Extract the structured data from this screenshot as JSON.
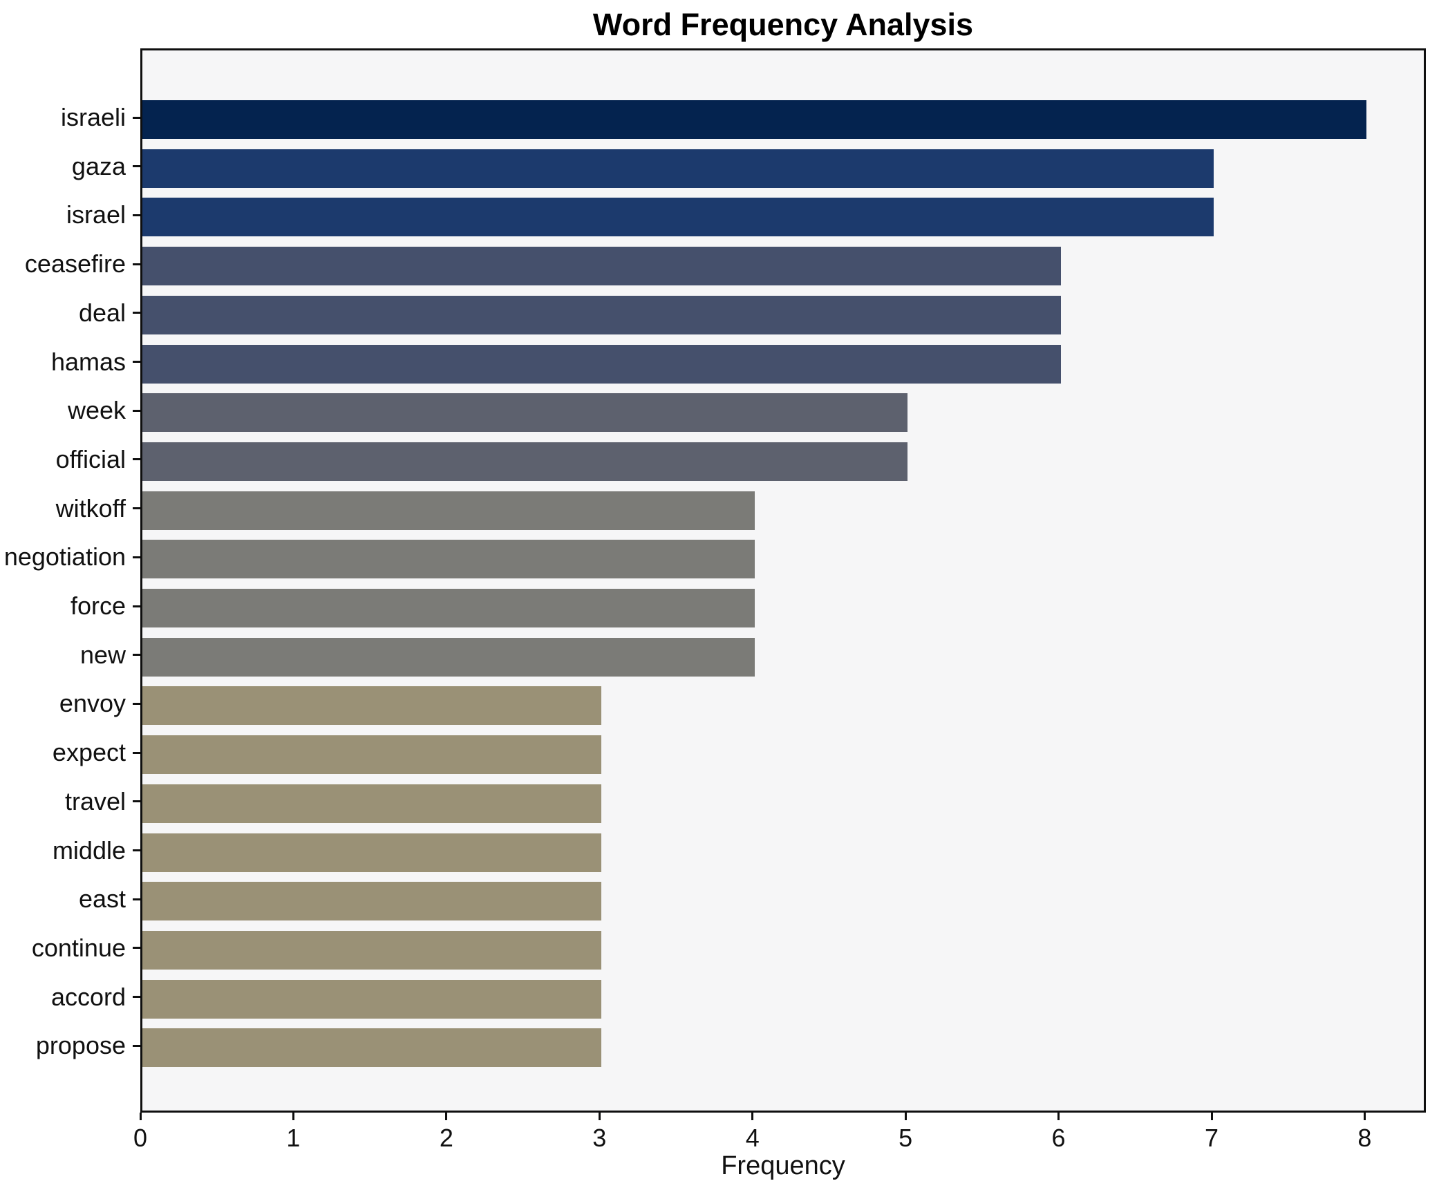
{
  "chart_data": {
    "type": "bar",
    "orientation": "horizontal",
    "title": "Word Frequency Analysis",
    "xlabel": "Frequency",
    "ylabel": "",
    "categories": [
      "israeli",
      "gaza",
      "israel",
      "ceasefire",
      "deal",
      "hamas",
      "week",
      "official",
      "witkoff",
      "negotiation",
      "force",
      "new",
      "envoy",
      "expect",
      "travel",
      "middle",
      "east",
      "continue",
      "accord",
      "propose"
    ],
    "values": [
      8,
      7,
      7,
      6,
      6,
      6,
      5,
      5,
      4,
      4,
      4,
      4,
      3,
      3,
      3,
      3,
      3,
      3,
      3,
      3
    ],
    "bar_colors": [
      "#04234f",
      "#1c3a6d",
      "#1c3a6d",
      "#45506c",
      "#45506c",
      "#45506c",
      "#5d616e",
      "#5d616e",
      "#7b7b77",
      "#7b7b77",
      "#7b7b77",
      "#7b7b77",
      "#9a9176",
      "#9a9176",
      "#9a9176",
      "#9a9176",
      "#9a9176",
      "#9a9176",
      "#9a9176",
      "#9a9176"
    ],
    "xticks": [
      0,
      1,
      2,
      3,
      4,
      5,
      6,
      7,
      8
    ],
    "xlim": [
      0,
      8.4
    ],
    "grid": false,
    "legend": "none",
    "plot_background": "#f6f6f7",
    "figure_background": "#ffffff",
    "spine_color": "#0f0f0f",
    "text_color": "#111111"
  }
}
